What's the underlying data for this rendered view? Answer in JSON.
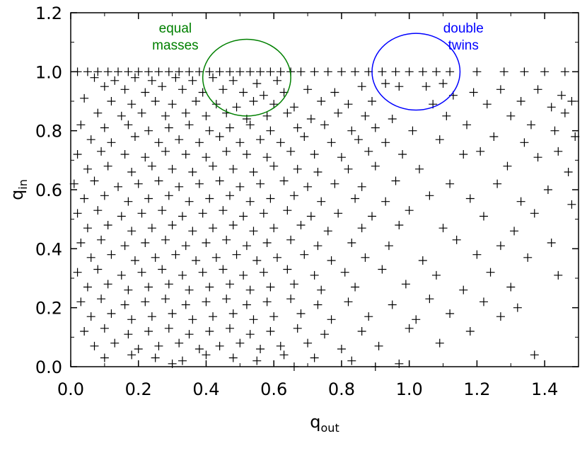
{
  "chart_data": {
    "type": "scatter",
    "marker": "plus",
    "xlim": [
      0.0,
      1.5
    ],
    "ylim": [
      0.0,
      1.2
    ],
    "xticks": [
      "0.0",
      "0.2",
      "0.4",
      "0.6",
      "0.8",
      "1.0",
      "1.2",
      "1.4"
    ],
    "yticks": [
      "0.0",
      "0.2",
      "0.4",
      "0.6",
      "0.8",
      "1.0",
      "1.2"
    ],
    "xlabel_main": "q",
    "xlabel_sub": "out",
    "ylabel_main": "q",
    "ylabel_sub": "in",
    "grid": false,
    "annotations": [
      {
        "lines": [
          "equal",
          "masses"
        ],
        "color": "#008000",
        "circle_center": [
          0.52,
          0.98
        ],
        "circle_radius": 0.13
      },
      {
        "lines": [
          "double",
          "twins"
        ],
        "color": "#0000ff",
        "circle_center": [
          1.02,
          1.0
        ],
        "circle_radius": 0.13
      }
    ],
    "points": [
      [
        0.02,
        1.0
      ],
      [
        0.05,
        1.0
      ],
      [
        0.08,
        1.0
      ],
      [
        0.11,
        1.0
      ],
      [
        0.14,
        1.0
      ],
      [
        0.17,
        1.0
      ],
      [
        0.2,
        1.0
      ],
      [
        0.23,
        1.0
      ],
      [
        0.26,
        1.0
      ],
      [
        0.29,
        1.0
      ],
      [
        0.32,
        1.0
      ],
      [
        0.35,
        1.0
      ],
      [
        0.38,
        1.0
      ],
      [
        0.41,
        1.0
      ],
      [
        0.44,
        1.0
      ],
      [
        0.47,
        1.0
      ],
      [
        0.5,
        1.0
      ],
      [
        0.53,
        1.0
      ],
      [
        0.56,
        1.0
      ],
      [
        0.59,
        1.0
      ],
      [
        0.62,
        1.0
      ],
      [
        0.65,
        1.0
      ],
      [
        0.68,
        1.0
      ],
      [
        0.72,
        1.0
      ],
      [
        0.76,
        1.0
      ],
      [
        0.8,
        1.0
      ],
      [
        0.84,
        1.0
      ],
      [
        0.88,
        1.0
      ],
      [
        0.92,
        1.0
      ],
      [
        0.96,
        1.0
      ],
      [
        1.0,
        1.0
      ],
      [
        1.04,
        1.0
      ],
      [
        1.08,
        1.0
      ],
      [
        1.12,
        1.0
      ],
      [
        1.2,
        1.0
      ],
      [
        1.28,
        1.0
      ],
      [
        1.34,
        1.0
      ],
      [
        1.4,
        1.0
      ],
      [
        1.46,
        1.0
      ],
      [
        0.07,
        0.98
      ],
      [
        0.13,
        0.97
      ],
      [
        0.19,
        0.98
      ],
      [
        0.24,
        0.97
      ],
      [
        0.31,
        0.98
      ],
      [
        0.36,
        0.97
      ],
      [
        0.42,
        0.98
      ],
      [
        0.48,
        0.97
      ],
      [
        0.55,
        0.96
      ],
      [
        0.61,
        0.97
      ],
      [
        0.93,
        0.96
      ],
      [
        0.97,
        0.95
      ],
      [
        1.05,
        0.95
      ],
      [
        1.1,
        0.96
      ],
      [
        0.1,
        0.95
      ],
      [
        0.16,
        0.94
      ],
      [
        0.22,
        0.93
      ],
      [
        0.27,
        0.95
      ],
      [
        0.33,
        0.94
      ],
      [
        0.39,
        0.93
      ],
      [
        0.45,
        0.94
      ],
      [
        0.51,
        0.93
      ],
      [
        0.57,
        0.92
      ],
      [
        0.63,
        0.93
      ],
      [
        0.7,
        0.94
      ],
      [
        0.78,
        0.93
      ],
      [
        0.86,
        0.95
      ],
      [
        1.13,
        0.92
      ],
      [
        1.19,
        0.93
      ],
      [
        1.27,
        0.94
      ],
      [
        1.38,
        0.94
      ],
      [
        1.45,
        0.92
      ],
      [
        0.04,
        0.91
      ],
      [
        0.12,
        0.9
      ],
      [
        0.18,
        0.89
      ],
      [
        0.25,
        0.9
      ],
      [
        0.3,
        0.89
      ],
      [
        0.37,
        0.9
      ],
      [
        0.43,
        0.89
      ],
      [
        0.49,
        0.88
      ],
      [
        0.54,
        0.9
      ],
      [
        0.6,
        0.89
      ],
      [
        0.66,
        0.88
      ],
      [
        0.74,
        0.9
      ],
      [
        0.82,
        0.89
      ],
      [
        0.89,
        0.9
      ],
      [
        1.07,
        0.89
      ],
      [
        1.23,
        0.89
      ],
      [
        1.33,
        0.9
      ],
      [
        1.42,
        0.88
      ],
      [
        1.48,
        0.9
      ],
      [
        0.08,
        0.86
      ],
      [
        0.15,
        0.85
      ],
      [
        0.21,
        0.86
      ],
      [
        0.28,
        0.85
      ],
      [
        0.34,
        0.86
      ],
      [
        0.4,
        0.85
      ],
      [
        0.46,
        0.86
      ],
      [
        0.52,
        0.84
      ],
      [
        0.58,
        0.85
      ],
      [
        0.64,
        0.86
      ],
      [
        0.71,
        0.84
      ],
      [
        0.79,
        0.86
      ],
      [
        0.87,
        0.85
      ],
      [
        0.95,
        0.84
      ],
      [
        1.11,
        0.85
      ],
      [
        1.3,
        0.85
      ],
      [
        1.46,
        0.86
      ],
      [
        0.03,
        0.82
      ],
      [
        0.1,
        0.81
      ],
      [
        0.17,
        0.82
      ],
      [
        0.23,
        0.8
      ],
      [
        0.29,
        0.81
      ],
      [
        0.35,
        0.82
      ],
      [
        0.41,
        0.8
      ],
      [
        0.47,
        0.81
      ],
      [
        0.53,
        0.82
      ],
      [
        0.59,
        0.8
      ],
      [
        0.67,
        0.81
      ],
      [
        0.75,
        0.82
      ],
      [
        0.83,
        0.8
      ],
      [
        0.9,
        0.81
      ],
      [
        1.01,
        0.8
      ],
      [
        1.17,
        0.82
      ],
      [
        1.36,
        0.82
      ],
      [
        1.43,
        0.8
      ],
      [
        0.06,
        0.77
      ],
      [
        0.12,
        0.76
      ],
      [
        0.19,
        0.78
      ],
      [
        0.26,
        0.76
      ],
      [
        0.32,
        0.77
      ],
      [
        0.38,
        0.76
      ],
      [
        0.44,
        0.78
      ],
      [
        0.5,
        0.76
      ],
      [
        0.56,
        0.77
      ],
      [
        0.62,
        0.76
      ],
      [
        0.69,
        0.78
      ],
      [
        0.77,
        0.76
      ],
      [
        0.85,
        0.77
      ],
      [
        0.93,
        0.76
      ],
      [
        1.09,
        0.77
      ],
      [
        1.25,
        0.78
      ],
      [
        1.34,
        0.76
      ],
      [
        1.49,
        0.78
      ],
      [
        0.02,
        0.72
      ],
      [
        0.09,
        0.73
      ],
      [
        0.16,
        0.72
      ],
      [
        0.22,
        0.71
      ],
      [
        0.28,
        0.73
      ],
      [
        0.34,
        0.72
      ],
      [
        0.4,
        0.71
      ],
      [
        0.46,
        0.73
      ],
      [
        0.52,
        0.72
      ],
      [
        0.58,
        0.71
      ],
      [
        0.65,
        0.73
      ],
      [
        0.72,
        0.72
      ],
      [
        0.8,
        0.71
      ],
      [
        0.88,
        0.73
      ],
      [
        0.98,
        0.72
      ],
      [
        1.16,
        0.72
      ],
      [
        1.21,
        0.73
      ],
      [
        1.38,
        0.71
      ],
      [
        1.44,
        0.73
      ],
      [
        0.05,
        0.67
      ],
      [
        0.11,
        0.68
      ],
      [
        0.18,
        0.66
      ],
      [
        0.24,
        0.68
      ],
      [
        0.3,
        0.67
      ],
      [
        0.36,
        0.66
      ],
      [
        0.42,
        0.68
      ],
      [
        0.48,
        0.67
      ],
      [
        0.54,
        0.66
      ],
      [
        0.6,
        0.68
      ],
      [
        0.67,
        0.67
      ],
      [
        0.73,
        0.66
      ],
      [
        0.82,
        0.67
      ],
      [
        0.9,
        0.68
      ],
      [
        1.03,
        0.67
      ],
      [
        1.29,
        0.68
      ],
      [
        1.47,
        0.66
      ],
      [
        0.01,
        0.62
      ],
      [
        0.07,
        0.63
      ],
      [
        0.14,
        0.61
      ],
      [
        0.2,
        0.62
      ],
      [
        0.26,
        0.63
      ],
      [
        0.32,
        0.61
      ],
      [
        0.38,
        0.62
      ],
      [
        0.44,
        0.63
      ],
      [
        0.5,
        0.61
      ],
      [
        0.56,
        0.62
      ],
      [
        0.63,
        0.63
      ],
      [
        0.7,
        0.61
      ],
      [
        0.78,
        0.62
      ],
      [
        0.86,
        0.61
      ],
      [
        0.96,
        0.63
      ],
      [
        1.12,
        0.62
      ],
      [
        1.26,
        0.62
      ],
      [
        1.41,
        0.6
      ],
      [
        0.04,
        0.57
      ],
      [
        0.1,
        0.58
      ],
      [
        0.17,
        0.56
      ],
      [
        0.23,
        0.57
      ],
      [
        0.29,
        0.58
      ],
      [
        0.35,
        0.56
      ],
      [
        0.41,
        0.57
      ],
      [
        0.47,
        0.58
      ],
      [
        0.53,
        0.56
      ],
      [
        0.59,
        0.57
      ],
      [
        0.66,
        0.58
      ],
      [
        0.74,
        0.56
      ],
      [
        0.84,
        0.57
      ],
      [
        0.93,
        0.56
      ],
      [
        1.06,
        0.58
      ],
      [
        1.18,
        0.57
      ],
      [
        1.33,
        0.56
      ],
      [
        1.48,
        0.55
      ],
      [
        0.02,
        0.52
      ],
      [
        0.08,
        0.53
      ],
      [
        0.15,
        0.51
      ],
      [
        0.21,
        0.52
      ],
      [
        0.27,
        0.53
      ],
      [
        0.33,
        0.51
      ],
      [
        0.39,
        0.52
      ],
      [
        0.45,
        0.53
      ],
      [
        0.51,
        0.51
      ],
      [
        0.57,
        0.52
      ],
      [
        0.64,
        0.53
      ],
      [
        0.71,
        0.51
      ],
      [
        0.79,
        0.52
      ],
      [
        0.89,
        0.51
      ],
      [
        1.0,
        0.53
      ],
      [
        1.22,
        0.51
      ],
      [
        1.37,
        0.52
      ],
      [
        0.05,
        0.47
      ],
      [
        0.11,
        0.48
      ],
      [
        0.18,
        0.46
      ],
      [
        0.24,
        0.47
      ],
      [
        0.3,
        0.48
      ],
      [
        0.36,
        0.46
      ],
      [
        0.42,
        0.47
      ],
      [
        0.48,
        0.48
      ],
      [
        0.54,
        0.46
      ],
      [
        0.6,
        0.47
      ],
      [
        0.68,
        0.48
      ],
      [
        0.76,
        0.46
      ],
      [
        0.86,
        0.47
      ],
      [
        0.97,
        0.48
      ],
      [
        1.1,
        0.47
      ],
      [
        1.31,
        0.46
      ],
      [
        0.03,
        0.42
      ],
      [
        0.09,
        0.43
      ],
      [
        0.16,
        0.41
      ],
      [
        0.22,
        0.42
      ],
      [
        0.28,
        0.43
      ],
      [
        0.34,
        0.41
      ],
      [
        0.4,
        0.42
      ],
      [
        0.46,
        0.43
      ],
      [
        0.52,
        0.41
      ],
      [
        0.58,
        0.42
      ],
      [
        0.65,
        0.43
      ],
      [
        0.73,
        0.41
      ],
      [
        0.83,
        0.42
      ],
      [
        0.94,
        0.41
      ],
      [
        1.14,
        0.43
      ],
      [
        1.27,
        0.41
      ],
      [
        1.42,
        0.42
      ],
      [
        0.06,
        0.37
      ],
      [
        0.12,
        0.38
      ],
      [
        0.19,
        0.36
      ],
      [
        0.25,
        0.37
      ],
      [
        0.31,
        0.38
      ],
      [
        0.37,
        0.36
      ],
      [
        0.43,
        0.37
      ],
      [
        0.49,
        0.38
      ],
      [
        0.55,
        0.36
      ],
      [
        0.61,
        0.37
      ],
      [
        0.69,
        0.38
      ],
      [
        0.77,
        0.36
      ],
      [
        0.87,
        0.37
      ],
      [
        1.04,
        0.36
      ],
      [
        1.2,
        0.38
      ],
      [
        1.35,
        0.37
      ],
      [
        0.02,
        0.32
      ],
      [
        0.08,
        0.33
      ],
      [
        0.15,
        0.31
      ],
      [
        0.21,
        0.32
      ],
      [
        0.27,
        0.33
      ],
      [
        0.33,
        0.31
      ],
      [
        0.39,
        0.32
      ],
      [
        0.45,
        0.33
      ],
      [
        0.51,
        0.31
      ],
      [
        0.57,
        0.32
      ],
      [
        0.64,
        0.33
      ],
      [
        0.72,
        0.31
      ],
      [
        0.81,
        0.32
      ],
      [
        0.92,
        0.33
      ],
      [
        1.08,
        0.31
      ],
      [
        1.24,
        0.32
      ],
      [
        1.44,
        0.31
      ],
      [
        0.05,
        0.27
      ],
      [
        0.11,
        0.28
      ],
      [
        0.17,
        0.26
      ],
      [
        0.23,
        0.27
      ],
      [
        0.29,
        0.28
      ],
      [
        0.35,
        0.26
      ],
      [
        0.41,
        0.27
      ],
      [
        0.47,
        0.28
      ],
      [
        0.53,
        0.26
      ],
      [
        0.59,
        0.27
      ],
      [
        0.66,
        0.28
      ],
      [
        0.74,
        0.26
      ],
      [
        0.84,
        0.27
      ],
      [
        0.99,
        0.28
      ],
      [
        1.16,
        0.26
      ],
      [
        1.3,
        0.27
      ],
      [
        0.03,
        0.22
      ],
      [
        0.09,
        0.23
      ],
      [
        0.16,
        0.21
      ],
      [
        0.22,
        0.22
      ],
      [
        0.28,
        0.23
      ],
      [
        0.34,
        0.21
      ],
      [
        0.4,
        0.22
      ],
      [
        0.46,
        0.23
      ],
      [
        0.52,
        0.21
      ],
      [
        0.58,
        0.22
      ],
      [
        0.65,
        0.23
      ],
      [
        0.73,
        0.21
      ],
      [
        0.82,
        0.22
      ],
      [
        0.95,
        0.21
      ],
      [
        1.06,
        0.23
      ],
      [
        1.22,
        0.22
      ],
      [
        1.32,
        0.2
      ],
      [
        0.06,
        0.17
      ],
      [
        0.12,
        0.18
      ],
      [
        0.18,
        0.16
      ],
      [
        0.24,
        0.17
      ],
      [
        0.3,
        0.18
      ],
      [
        0.36,
        0.16
      ],
      [
        0.42,
        0.17
      ],
      [
        0.48,
        0.18
      ],
      [
        0.54,
        0.16
      ],
      [
        0.6,
        0.17
      ],
      [
        0.68,
        0.18
      ],
      [
        0.77,
        0.16
      ],
      [
        0.88,
        0.17
      ],
      [
        1.02,
        0.16
      ],
      [
        1.12,
        0.18
      ],
      [
        1.27,
        0.17
      ],
      [
        0.04,
        0.12
      ],
      [
        0.1,
        0.13
      ],
      [
        0.17,
        0.11
      ],
      [
        0.23,
        0.12
      ],
      [
        0.29,
        0.13
      ],
      [
        0.35,
        0.11
      ],
      [
        0.41,
        0.12
      ],
      [
        0.47,
        0.13
      ],
      [
        0.53,
        0.11
      ],
      [
        0.59,
        0.12
      ],
      [
        0.67,
        0.13
      ],
      [
        0.75,
        0.11
      ],
      [
        0.86,
        0.12
      ],
      [
        1.0,
        0.13
      ],
      [
        1.18,
        0.12
      ],
      [
        0.07,
        0.07
      ],
      [
        0.13,
        0.08
      ],
      [
        0.2,
        0.06
      ],
      [
        0.26,
        0.07
      ],
      [
        0.32,
        0.08
      ],
      [
        0.38,
        0.06
      ],
      [
        0.44,
        0.07
      ],
      [
        0.5,
        0.08
      ],
      [
        0.56,
        0.06
      ],
      [
        0.62,
        0.07
      ],
      [
        0.7,
        0.08
      ],
      [
        0.8,
        0.06
      ],
      [
        0.91,
        0.07
      ],
      [
        1.09,
        0.08
      ],
      [
        0.1,
        0.03
      ],
      [
        0.18,
        0.04
      ],
      [
        0.25,
        0.03
      ],
      [
        0.33,
        0.02
      ],
      [
        0.4,
        0.04
      ],
      [
        0.48,
        0.03
      ],
      [
        0.55,
        0.02
      ],
      [
        0.63,
        0.04
      ],
      [
        0.72,
        0.03
      ],
      [
        0.83,
        0.02
      ],
      [
        0.97,
        0.01
      ],
      [
        1.37,
        0.04
      ],
      [
        0.66,
        0.0
      ],
      [
        0.9,
        0.0
      ],
      [
        0.3,
        0.01
      ]
    ]
  }
}
